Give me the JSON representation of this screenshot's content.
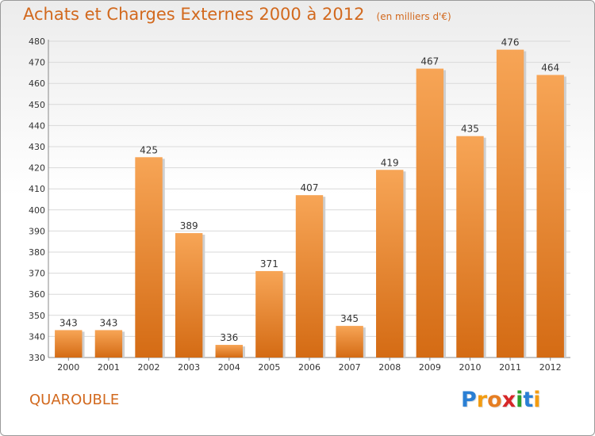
{
  "header": {
    "title": "Achats et Charges Externes 2000 à 2012",
    "unit": "(en milliers d'€)"
  },
  "footer": {
    "commune": "QUAROUBLE",
    "logo_letters": [
      "P",
      "r",
      "o",
      "x",
      "i",
      "t",
      "i"
    ],
    "logo_colors": [
      "#2a7fd4",
      "#f39c12",
      "#e67e22",
      "#d62728",
      "#2ca02c",
      "#2a7fd4",
      "#f39c12"
    ]
  },
  "colors": {
    "bar_top": "#f7a556",
    "bar_bottom": "#d46b14",
    "accent": "#d2691e",
    "grid": "#d9d9d9",
    "axis_text": "#333333"
  },
  "chart_data": {
    "type": "bar",
    "title": "Achats et Charges Externes 2000 à 2012",
    "ylabel": "(en milliers d'€)",
    "xlabel": "",
    "categories": [
      "2000",
      "2001",
      "2002",
      "2003",
      "2004",
      "2005",
      "2006",
      "2007",
      "2008",
      "2009",
      "2010",
      "2011",
      "2012"
    ],
    "values": [
      343,
      343,
      425,
      389,
      336,
      371,
      407,
      345,
      419,
      467,
      435,
      476,
      464
    ],
    "ylim": [
      330,
      480
    ],
    "yticks": [
      330,
      340,
      350,
      360,
      370,
      380,
      390,
      400,
      410,
      420,
      430,
      440,
      450,
      460,
      470,
      480
    ],
    "grid": true,
    "data_labels": true
  }
}
